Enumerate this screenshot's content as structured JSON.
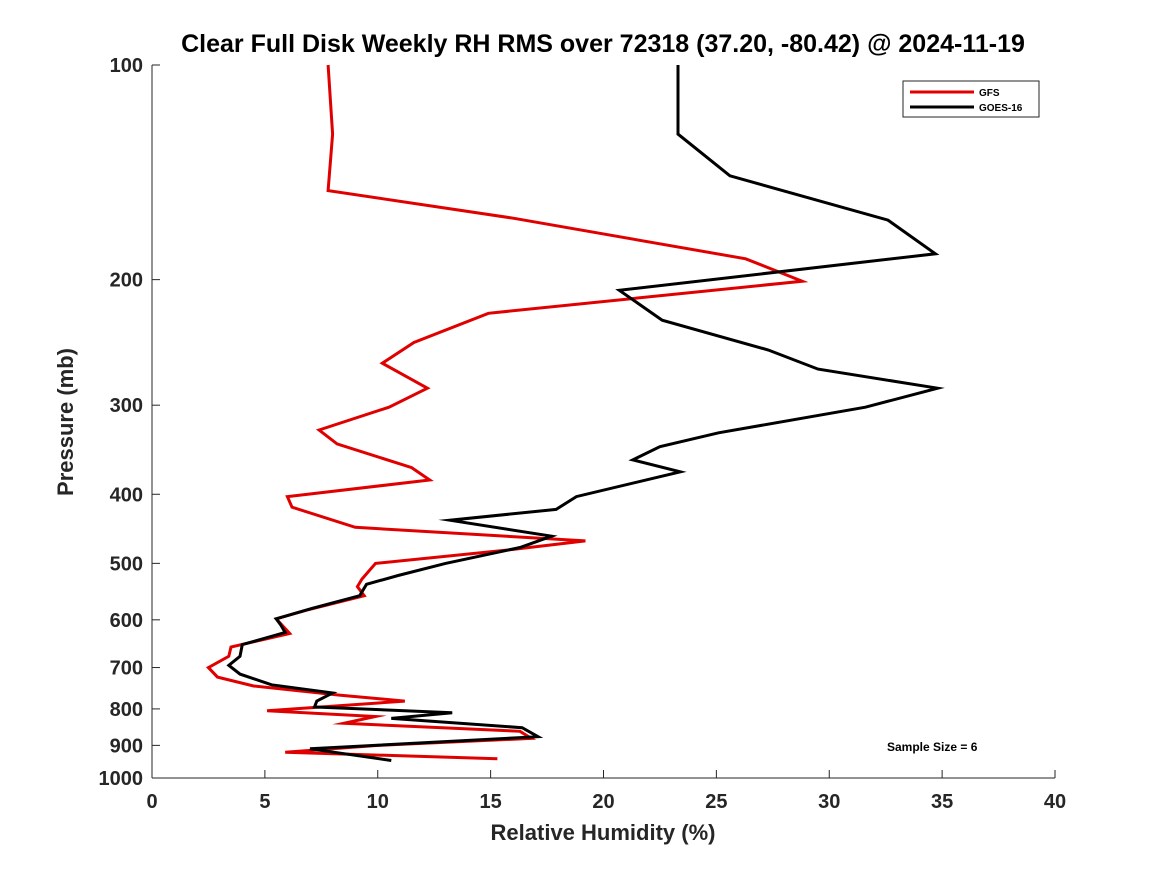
{
  "chart_data": {
    "type": "line",
    "title": "Clear Full Disk Weekly RH RMS over 72318 (37.20, -80.42) @ 2024-11-19",
    "xlabel": "Relative Humidity (%)",
    "ylabel": "Pressure (mb)",
    "xlim": [
      0,
      40
    ],
    "ylim": [
      100,
      1000
    ],
    "yscale": "log",
    "y_reversed": true,
    "x_ticks": [
      0,
      5,
      10,
      15,
      20,
      25,
      30,
      35,
      40
    ],
    "y_ticks": [
      100,
      200,
      300,
      400,
      500,
      600,
      700,
      800,
      900,
      1000
    ],
    "grid": false,
    "legend_position": "top-right",
    "annotation": "Sample Size = 6",
    "series": [
      {
        "name": "GFS",
        "color": "#e00000",
        "points": [
          [
            7.8,
            100
          ],
          [
            8.0,
            125
          ],
          [
            7.8,
            150
          ],
          [
            16.0,
            164
          ],
          [
            26.3,
            187
          ],
          [
            28.8,
            201
          ],
          [
            14.9,
            223
          ],
          [
            11.6,
            245
          ],
          [
            10.2,
            262
          ],
          [
            12.2,
            284
          ],
          [
            10.5,
            302
          ],
          [
            7.4,
            325
          ],
          [
            8.2,
            340
          ],
          [
            11.5,
            367
          ],
          [
            12.3,
            382
          ],
          [
            6.0,
            403
          ],
          [
            6.2,
            417
          ],
          [
            9.0,
            445
          ],
          [
            19.2,
            465
          ],
          [
            16.0,
            478
          ],
          [
            9.9,
            500
          ],
          [
            9.3,
            526
          ],
          [
            9.1,
            539
          ],
          [
            9.4,
            555
          ],
          [
            6.8,
            582
          ],
          [
            5.5,
            598
          ],
          [
            6.1,
            627
          ],
          [
            3.5,
            655
          ],
          [
            3.4,
            675
          ],
          [
            2.5,
            700
          ],
          [
            2.9,
            722
          ],
          [
            4.5,
            743
          ],
          [
            8.3,
            765
          ],
          [
            11.2,
            780
          ],
          [
            5.1,
            805
          ],
          [
            9.9,
            820
          ],
          [
            8.5,
            838
          ],
          [
            16.3,
            860
          ],
          [
            16.8,
            880
          ],
          [
            10.0,
            900
          ],
          [
            5.9,
            920
          ],
          [
            15.3,
            940
          ]
        ]
      },
      {
        "name": "GOES-16",
        "color": "#000000",
        "points": [
          [
            23.3,
            100
          ],
          [
            23.3,
            125
          ],
          [
            25.6,
            143
          ],
          [
            32.6,
            165
          ],
          [
            34.7,
            184
          ],
          [
            20.7,
            207
          ],
          [
            22.6,
            228
          ],
          [
            27.3,
            251
          ],
          [
            29.5,
            267
          ],
          [
            34.8,
            284
          ],
          [
            31.6,
            302
          ],
          [
            25.1,
            328
          ],
          [
            22.5,
            343
          ],
          [
            21.3,
            358
          ],
          [
            23.4,
            372
          ],
          [
            18.8,
            403
          ],
          [
            17.9,
            420
          ],
          [
            13.2,
            435
          ],
          [
            17.7,
            458
          ],
          [
            16.3,
            475
          ],
          [
            13.0,
            500
          ],
          [
            10.9,
            520
          ],
          [
            9.5,
            535
          ],
          [
            9.2,
            555
          ],
          [
            7.1,
            578
          ],
          [
            5.5,
            598
          ],
          [
            5.7,
            610
          ],
          [
            5.9,
            625
          ],
          [
            4.0,
            650
          ],
          [
            3.9,
            675
          ],
          [
            3.4,
            695
          ],
          [
            3.9,
            715
          ],
          [
            5.3,
            740
          ],
          [
            8.0,
            760
          ],
          [
            7.3,
            780
          ],
          [
            7.2,
            795
          ],
          [
            13.3,
            810
          ],
          [
            10.6,
            825
          ],
          [
            16.4,
            850
          ],
          [
            17.1,
            875
          ],
          [
            7.0,
            910
          ],
          [
            10.6,
            945
          ]
        ]
      }
    ]
  }
}
